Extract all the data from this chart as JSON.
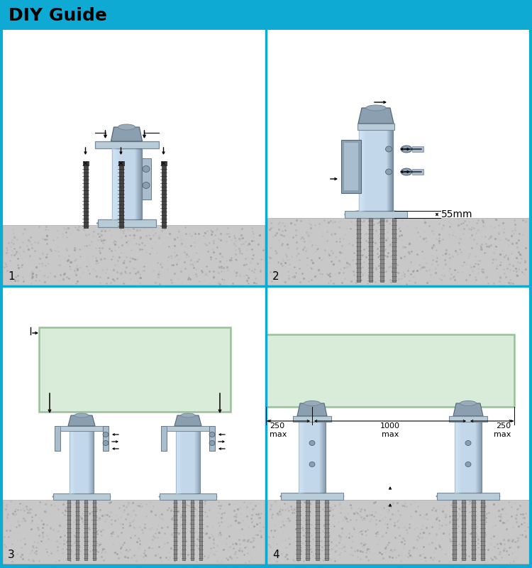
{
  "title": "DIY Guide",
  "title_bg": "#0eaad4",
  "white_bg": "#ffffff",
  "border_col": "#0eaad4",
  "concrete_col": "#c8c8c8",
  "concrete_dark": "#b0b0b0",
  "spigot_main": "#c2d8ea",
  "spigot_dark": "#8aa0b0",
  "spigot_mid": "#a8bece",
  "flange_col": "#b8ccd8",
  "glass_fill": "#d4ead4",
  "glass_edge": "#90b890",
  "screw_col": "#4a4a4a",
  "bolt_col": "#888888",
  "arrow_col": "#000000",
  "label_col": "#000000",
  "section_nums": [
    "1",
    "2",
    "3",
    "4"
  ],
  "dim_55mm": "55mm",
  "dim_250": "250\nmax",
  "dim_1000": "1000\nmax"
}
